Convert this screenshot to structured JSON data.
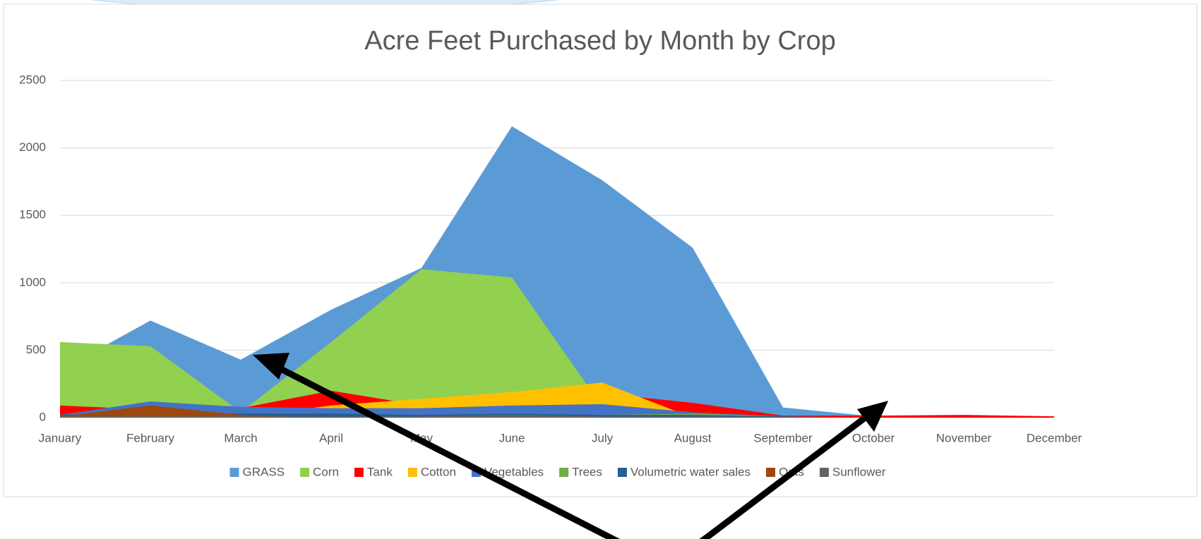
{
  "chart_data": {
    "type": "area",
    "title": "Acre Feet Purchased by Month by Crop",
    "categories": [
      "January",
      "February",
      "March",
      "April",
      "May",
      "June",
      "July",
      "August",
      "September",
      "October",
      "November",
      "December"
    ],
    "ylim": [
      0,
      2500
    ],
    "yticks": [
      0,
      500,
      1000,
      1500,
      2000,
      2500
    ],
    "grid": true,
    "legend": "bottom",
    "series": [
      {
        "name": "GRASS",
        "color": "#5b9bd5",
        "values": [
          350,
          720,
          430,
          800,
          1110,
          2160,
          1760,
          1260,
          75,
          10,
          5,
          0
        ]
      },
      {
        "name": "Corn",
        "color": "#92d050",
        "values": [
          560,
          530,
          40,
          560,
          1100,
          1040,
          80,
          20,
          0,
          0,
          0,
          0
        ]
      },
      {
        "name": "Tank",
        "color": "#ff0000",
        "values": [
          90,
          60,
          70,
          200,
          90,
          160,
          180,
          110,
          15,
          15,
          20,
          10
        ]
      },
      {
        "name": "Cotton",
        "color": "#ffc000",
        "values": [
          0,
          0,
          0,
          90,
          140,
          190,
          260,
          0,
          0,
          0,
          0,
          0
        ]
      },
      {
        "name": "Vegetables",
        "color": "#4472c4",
        "values": [
          20,
          120,
          80,
          70,
          70,
          90,
          100,
          40,
          10,
          0,
          0,
          0
        ]
      },
      {
        "name": "Trees",
        "color": "#70ad47",
        "values": [
          10,
          10,
          10,
          10,
          20,
          20,
          20,
          30,
          10,
          0,
          0,
          0
        ]
      },
      {
        "name": "Volumetric water sales",
        "color": "#255e91",
        "values": [
          20,
          30,
          30,
          30,
          20,
          30,
          20,
          20,
          10,
          0,
          0,
          0
        ]
      },
      {
        "name": "Oats",
        "color": "#9e480e",
        "values": [
          10,
          90,
          20,
          0,
          0,
          0,
          0,
          0,
          0,
          0,
          0,
          0
        ]
      },
      {
        "name": "Sunflower",
        "color": "#636363",
        "values": [
          10,
          10,
          10,
          10,
          10,
          20,
          10,
          10,
          5,
          0,
          0,
          0
        ]
      }
    ]
  }
}
